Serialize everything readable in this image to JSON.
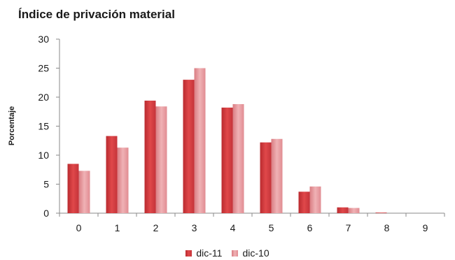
{
  "chart_data": {
    "type": "bar",
    "title": "Índice de privación material",
    "ylabel": "Porcentaje",
    "xlabel": "",
    "categories": [
      "0",
      "1",
      "2",
      "3",
      "4",
      "5",
      "6",
      "7",
      "8",
      "9"
    ],
    "ylim": [
      0,
      30
    ],
    "yticks": [
      0,
      5,
      10,
      15,
      20,
      25,
      30
    ],
    "grid": false,
    "legend": "bottom-center",
    "series": [
      {
        "name": "dic-11",
        "color": "#d13a3c",
        "values": [
          8.5,
          13.3,
          19.4,
          23.0,
          18.2,
          12.2,
          3.7,
          1.0,
          0.1,
          0.0
        ]
      },
      {
        "name": "dic-10",
        "color": "#e8969a",
        "values": [
          7.3,
          11.3,
          18.4,
          25.0,
          18.8,
          12.8,
          4.6,
          0.9,
          0.0,
          0.0
        ]
      }
    ]
  }
}
